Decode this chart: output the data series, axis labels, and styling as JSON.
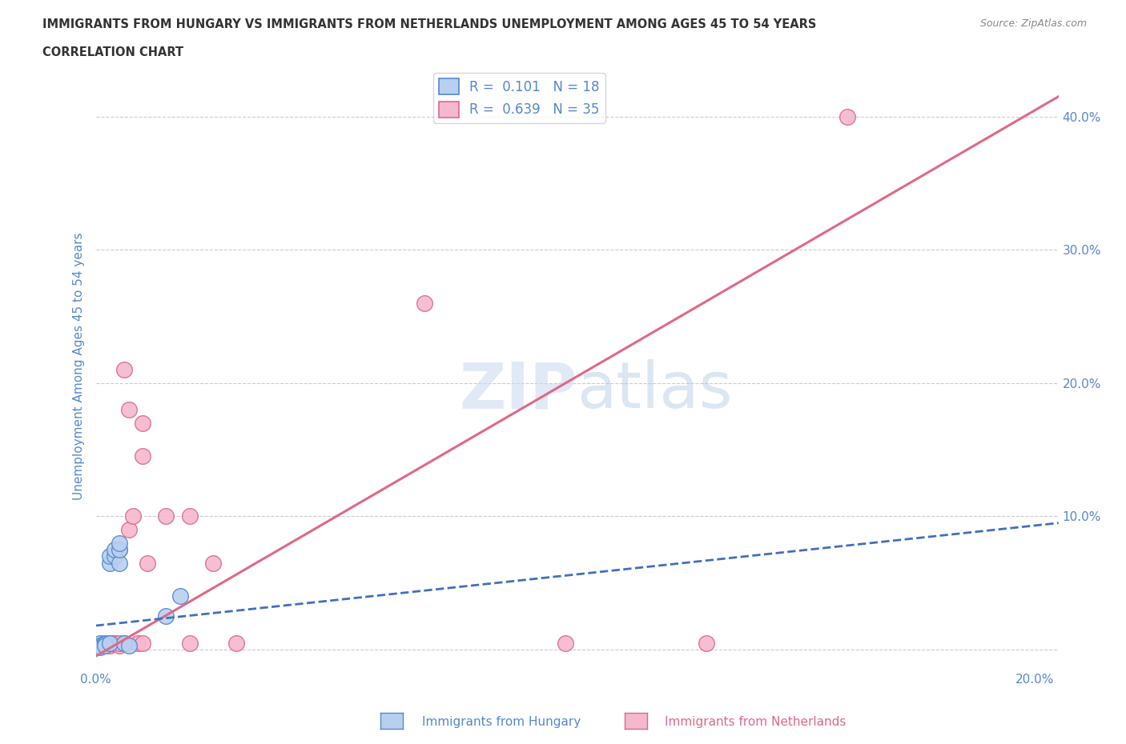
{
  "title_line1": "IMMIGRANTS FROM HUNGARY VS IMMIGRANTS FROM NETHERLANDS UNEMPLOYMENT AMONG AGES 45 TO 54 YEARS",
  "title_line2": "CORRELATION CHART",
  "source_text": "Source: ZipAtlas.com",
  "ylabel": "Unemployment Among Ages 45 to 54 years",
  "watermark_zip": "ZIP",
  "watermark_atlas": "atlas",
  "legend_r1": "R =  0.101   N = 18",
  "legend_r2": "R =  0.639   N = 35",
  "legend_label1": "Immigrants from Hungary",
  "legend_label2": "Immigrants from Netherlands",
  "hungary_color": "#b8d0f0",
  "netherlands_color": "#f5b8cc",
  "hungary_edge_color": "#5588cc",
  "netherlands_edge_color": "#e06888",
  "hungary_line_color": "#4070c0",
  "netherlands_line_color": "#e06888",
  "hungary_x": [
    0.001,
    0.001,
    0.001,
    0.002,
    0.002,
    0.002,
    0.003,
    0.003,
    0.003,
    0.004,
    0.004,
    0.005,
    0.005,
    0.005,
    0.006,
    0.007,
    0.015,
    0.018
  ],
  "hungary_y": [
    0.005,
    0.003,
    0.002,
    0.005,
    0.004,
    0.003,
    0.005,
    0.065,
    0.07,
    0.07,
    0.075,
    0.065,
    0.075,
    0.08,
    0.005,
    0.003,
    0.025,
    0.04
  ],
  "netherlands_x": [
    0.001,
    0.001,
    0.001,
    0.002,
    0.002,
    0.002,
    0.003,
    0.003,
    0.003,
    0.003,
    0.004,
    0.004,
    0.004,
    0.005,
    0.005,
    0.005,
    0.006,
    0.006,
    0.007,
    0.007,
    0.008,
    0.009,
    0.01,
    0.01,
    0.01,
    0.011,
    0.015,
    0.02,
    0.02,
    0.025,
    0.03,
    0.07,
    0.1,
    0.13,
    0.16
  ],
  "netherlands_y": [
    0.004,
    0.003,
    0.003,
    0.004,
    0.003,
    0.003,
    0.004,
    0.005,
    0.005,
    0.003,
    0.004,
    0.005,
    0.005,
    0.003,
    0.075,
    0.005,
    0.005,
    0.21,
    0.18,
    0.09,
    0.1,
    0.005,
    0.17,
    0.145,
    0.005,
    0.065,
    0.1,
    0.1,
    0.005,
    0.065,
    0.005,
    0.26,
    0.005,
    0.005,
    0.4
  ],
  "nl_line_x0": 0.0,
  "nl_line_y0": -0.005,
  "nl_line_x1": 0.205,
  "nl_line_y1": 0.415,
  "hu_line_x0": 0.0,
  "hu_line_y0": 0.018,
  "hu_line_x1": 0.205,
  "hu_line_y1": 0.095,
  "xlim": [
    0.0,
    0.205
  ],
  "ylim": [
    -0.015,
    0.44
  ],
  "yticks": [
    0.0,
    0.1,
    0.2,
    0.3,
    0.4
  ],
  "ytick_right_labels": [
    "",
    "10.0%",
    "20.0%",
    "30.0%",
    "40.0%"
  ],
  "xticks": [
    0.0,
    0.05,
    0.1,
    0.15,
    0.2
  ],
  "xtick_labels": [
    "0.0%",
    "",
    "",
    "",
    "20.0%"
  ],
  "grid_color": "#cccccc",
  "background_color": "#ffffff",
  "title_color": "#333333",
  "axis_color": "#5588cc",
  "source_color": "#888888"
}
